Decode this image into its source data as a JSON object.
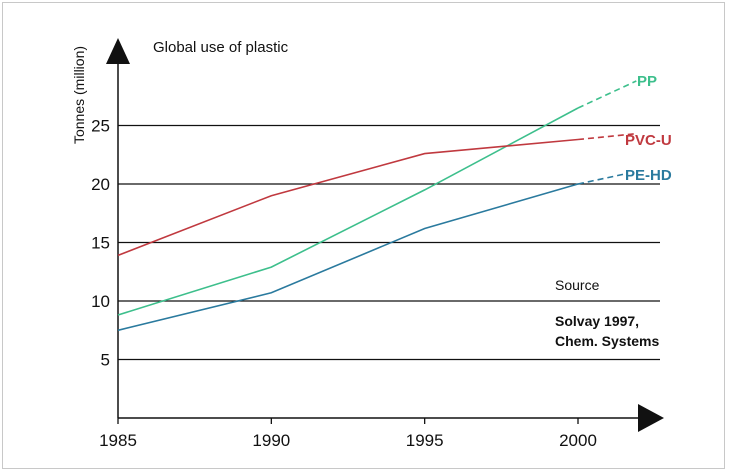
{
  "chart_data": {
    "type": "line",
    "title": "Global use of plastic",
    "ylabel": "Tonnes (million)",
    "xlabel": "",
    "x": [
      1985,
      1990,
      1995,
      2000
    ],
    "xlim": [
      1985,
      2003
    ],
    "ylim": [
      0,
      28
    ],
    "y_ticks": [
      5,
      10,
      15,
      20,
      25
    ],
    "grid": true,
    "series": [
      {
        "name": "PP",
        "color": "#3dbf8c",
        "points": [
          [
            1985,
            8.8
          ],
          [
            1990,
            12.9
          ],
          [
            1995,
            19.5
          ],
          [
            2000,
            26.5
          ]
        ],
        "projection": [
          [
            2000,
            26.5
          ],
          [
            2001.9,
            28.8
          ]
        ]
      },
      {
        "name": "PVC-U",
        "color": "#c0393f",
        "points": [
          [
            1985,
            13.9
          ],
          [
            1990,
            19.0
          ],
          [
            1995,
            22.6
          ],
          [
            2000,
            23.8
          ]
        ],
        "projection": [
          [
            2000,
            23.8
          ],
          [
            2001.9,
            24.3
          ]
        ]
      },
      {
        "name": "PE-HD",
        "color": "#2a7a9e",
        "points": [
          [
            1985,
            7.5
          ],
          [
            1990,
            10.7
          ],
          [
            1995,
            16.2
          ],
          [
            2000,
            20.0
          ]
        ],
        "projection": [
          [
            2000,
            20.0
          ],
          [
            2001.6,
            20.9
          ]
        ]
      }
    ],
    "annotations": {
      "source_heading": "Source",
      "source_line1": "Solvay 1997,",
      "source_line2": "Chem. Systems"
    }
  }
}
